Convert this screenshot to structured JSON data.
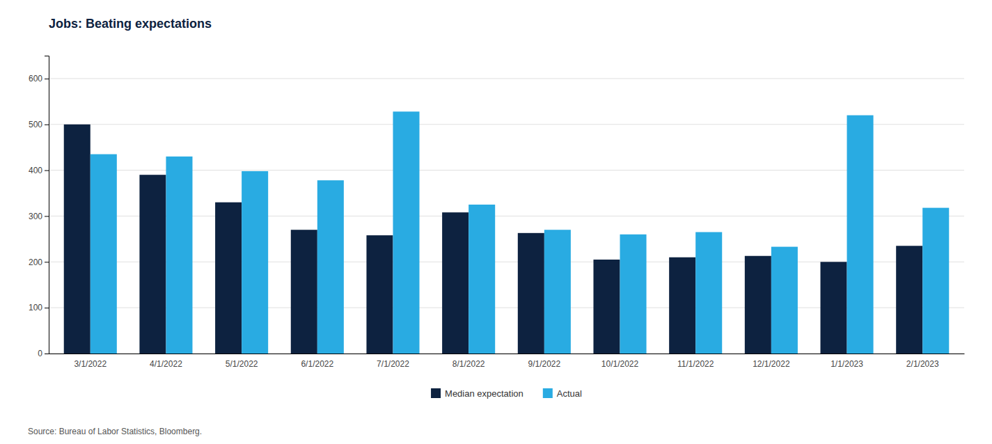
{
  "chart_data": {
    "type": "bar",
    "title": "Jobs: Beating expectations",
    "annotations": [
      "Source: Bureau of Labor Statistics, Bloomberg."
    ],
    "categories": [
      "3/1/2022",
      "4/1/2022",
      "5/1/2022",
      "6/1/2022",
      "7/1/2022",
      "8/1/2022",
      "9/1/2022",
      "10/1/2022",
      "11/1/2022",
      "12/1/2022",
      "1/1/2023",
      "2/1/2023"
    ],
    "series": [
      {
        "name": "Median expectation",
        "color": "#0d2240",
        "values": [
          500,
          390,
          330,
          270,
          258,
          308,
          263,
          205,
          210,
          213,
          200,
          235
        ]
      },
      {
        "name": "Actual",
        "color": "#29abe2",
        "values": [
          435,
          430,
          398,
          378,
          528,
          325,
          270,
          260,
          265,
          233,
          520,
          318
        ]
      }
    ],
    "ylim": [
      0,
      650
    ],
    "yticks": [
      0,
      100,
      200,
      300,
      400,
      500,
      600
    ],
    "grid": true,
    "legend": "bottom"
  }
}
